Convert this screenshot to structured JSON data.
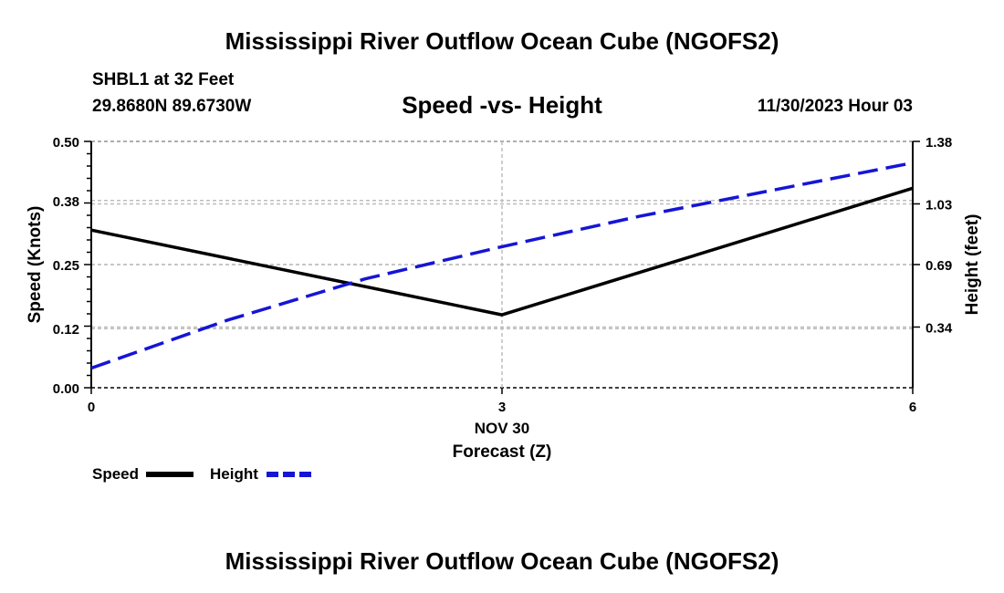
{
  "header": {
    "title": "Mississippi River Outflow Ocean Cube (NGOFS2)",
    "station": "SHBL1 at 32 Feet",
    "coords": "29.8680N  89.6730W",
    "subtitle": "Speed -vs- Height",
    "datetime": "11/30/2023 Hour 03"
  },
  "footer": {
    "title": "Mississippi River Outflow Ocean Cube (NGOFS2)"
  },
  "colors": {
    "speed": "#000000",
    "height": "#1515d6",
    "grid": "#bdbdbd"
  },
  "chart_data": {
    "type": "line",
    "title": "Speed -vs- Height",
    "x": [
      0,
      3,
      6
    ],
    "xlim": [
      0,
      6
    ],
    "x_tick_labels": [
      "0",
      "3",
      "6"
    ],
    "x_date_label": "NOV 30",
    "xlabel": "Forecast (Z)",
    "ylabel": "Speed (Knots)",
    "ylim": [
      0,
      0.5
    ],
    "y_ticks": [
      0.0,
      0.12,
      0.25,
      0.38,
      0.5
    ],
    "y_tick_labels": [
      "0.00",
      "0.12",
      "0.25",
      "0.38",
      "0.50"
    ],
    "y2label": "Height (feet)",
    "y2lim": [
      0,
      1.38
    ],
    "y2_ticks": [
      0.34,
      0.69,
      1.03,
      1.38
    ],
    "y2_tick_labels": [
      "0.34",
      "0.69",
      "1.03",
      "1.38"
    ],
    "grid": true,
    "legend_position": "bottom-left",
    "series": [
      {
        "name": "Speed",
        "axis": "left",
        "style": "solid",
        "x": [
          0,
          3,
          6
        ],
        "values": [
          0.32,
          0.148,
          0.405
        ]
      },
      {
        "name": "Height",
        "axis": "right",
        "style": "dashed",
        "x": [
          0,
          1,
          2,
          3,
          4,
          5,
          6
        ],
        "values": [
          0.11,
          0.38,
          0.61,
          0.79,
          0.96,
          1.11,
          1.26
        ]
      }
    ]
  }
}
